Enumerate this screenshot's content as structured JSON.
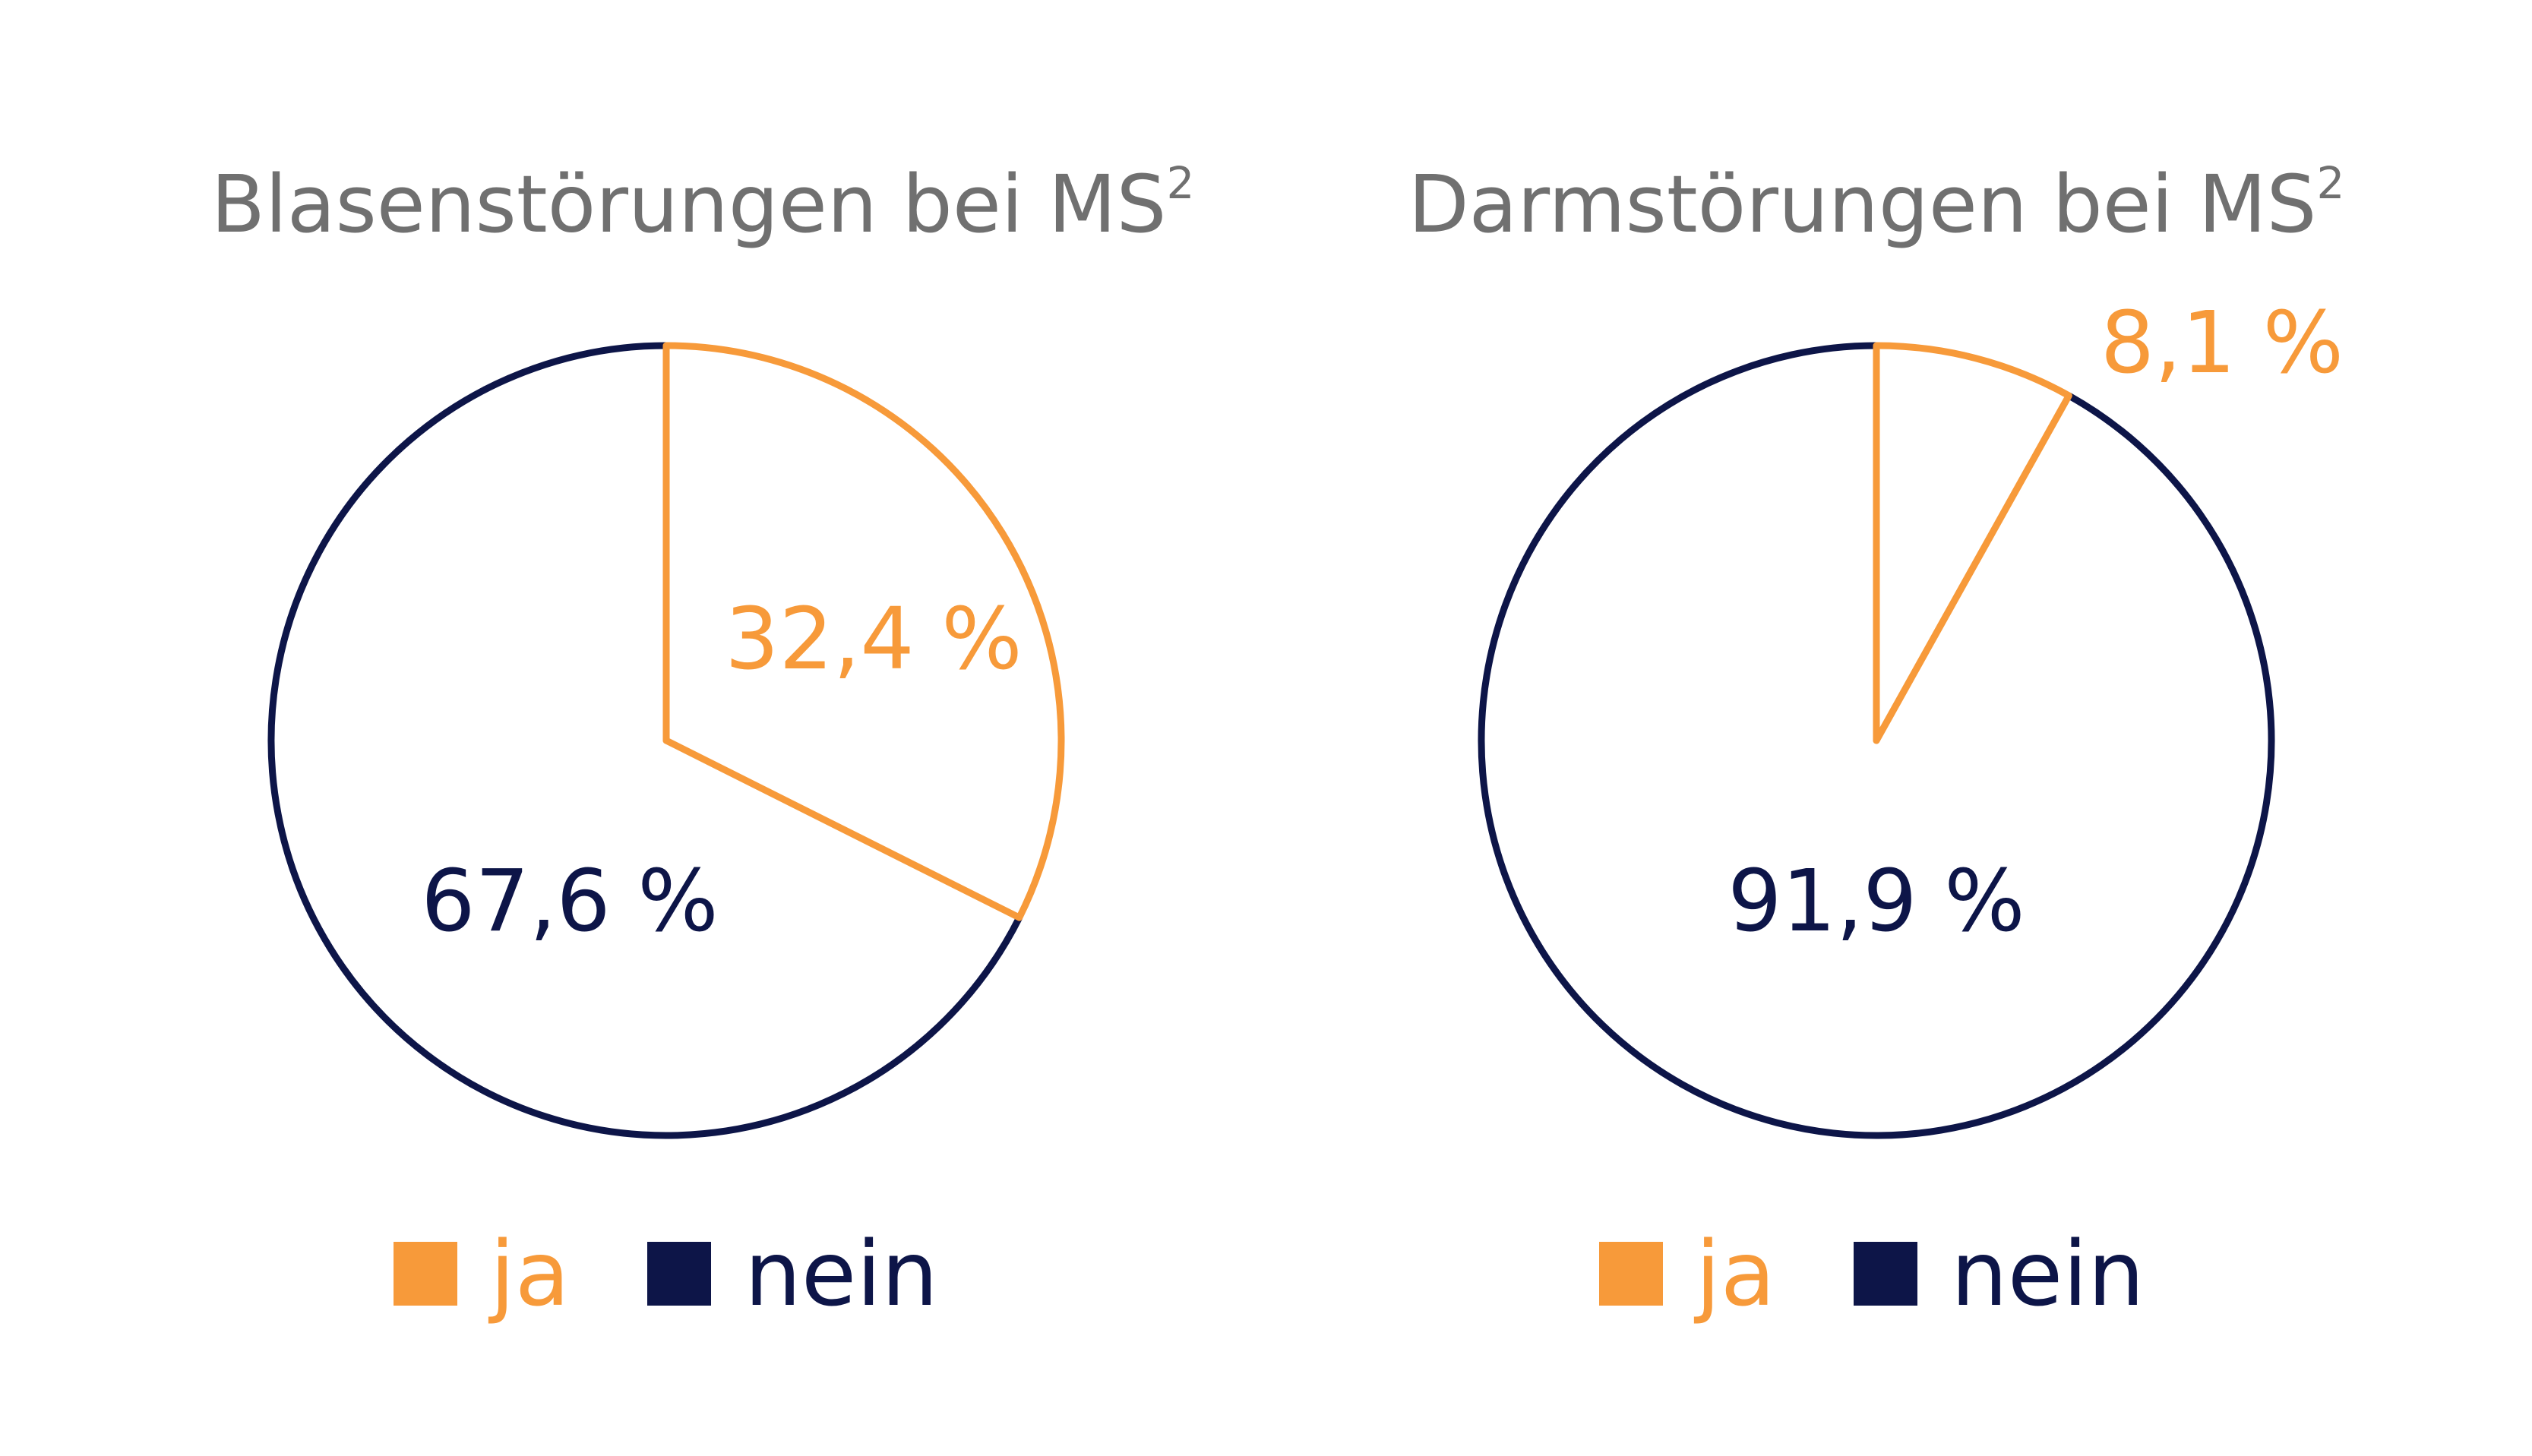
{
  "colors": {
    "ja": "#f79a3a",
    "nein": "#0d1548",
    "title": "#707070",
    "background": "#ffffff"
  },
  "chart_data": [
    {
      "type": "pie",
      "title": "Blasenstörungen bei MS",
      "title_superscript": "2",
      "start_angle_deg": 0,
      "direction": "clockwise",
      "style": "outline",
      "slices": [
        {
          "label": "ja",
          "value": 32.4,
          "value_label": "32,4 %",
          "color": "#f79a3a"
        },
        {
          "label": "nein",
          "value": 67.6,
          "value_label": "67,6 %",
          "color": "#0d1548"
        }
      ],
      "legend": [
        "ja",
        "nein"
      ],
      "legend_position": "bottom"
    },
    {
      "type": "pie",
      "title": "Darmstörungen bei MS",
      "title_superscript": "2",
      "start_angle_deg": 0,
      "direction": "clockwise",
      "style": "outline",
      "slices": [
        {
          "label": "ja",
          "value": 8.1,
          "value_label": "8,1 %",
          "color": "#f79a3a"
        },
        {
          "label": "nein",
          "value": 91.9,
          "value_label": "91,9 %",
          "color": "#0d1548"
        }
      ],
      "legend": [
        "ja",
        "nein"
      ],
      "legend_position": "bottom"
    }
  ]
}
